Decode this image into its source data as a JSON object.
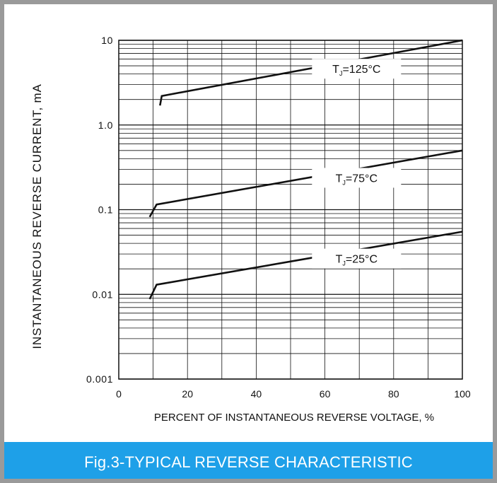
{
  "chart_data": {
    "type": "line",
    "title": "",
    "xlabel": "PERCENT OF INSTANTANEOUS REVERSE VOLTAGE, %",
    "ylabel": "INSTANTANEOUS  REVERSE  CURRENT, mA",
    "xlim": [
      0,
      100
    ],
    "ylim": [
      0.001,
      10
    ],
    "yscale": "log",
    "x_ticks": [
      0,
      20,
      40,
      60,
      80,
      100
    ],
    "y_tick_labels": [
      "10",
      "1.0",
      "0.1",
      "0.01",
      "0.001"
    ],
    "grid": true,
    "series": [
      {
        "name": "TJ=125°C",
        "sub": "J",
        "label_prefix": "T",
        "label_suffix": "=125°C",
        "points": [
          [
            12,
            1.7
          ],
          [
            12.5,
            2.2
          ],
          [
            100,
            10
          ]
        ]
      },
      {
        "name": "TJ=75°C",
        "sub": "J",
        "label_prefix": "T",
        "label_suffix": "=75°C",
        "points": [
          [
            9,
            0.082
          ],
          [
            11,
            0.115
          ],
          [
            100,
            0.5
          ]
        ]
      },
      {
        "name": "TJ=25°C",
        "sub": "J",
        "label_prefix": "T",
        "label_suffix": "=25°C",
        "points": [
          [
            9,
            0.0088
          ],
          [
            11,
            0.013
          ],
          [
            100,
            0.055
          ]
        ]
      }
    ]
  },
  "caption": "Fig.3-TYPICAL REVERSE CHARACTERISTIC",
  "colors": {
    "caption_bg": "#1ea0e8",
    "frame": "#9a9a9a",
    "line": "#111111",
    "grid": "#111111"
  }
}
